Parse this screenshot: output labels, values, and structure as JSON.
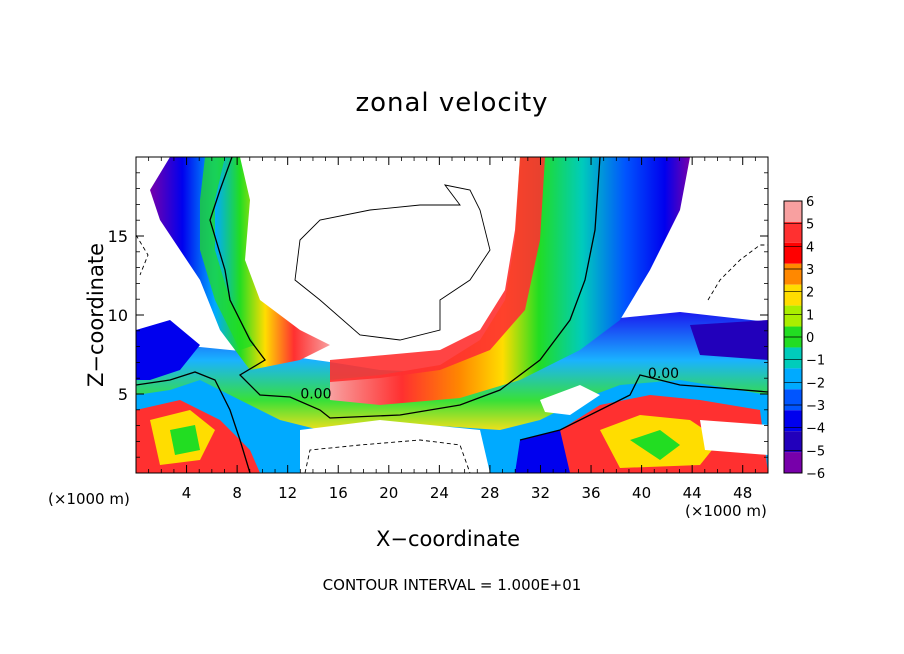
{
  "chart_data": {
    "type": "heatmap",
    "title": "zonal velocity",
    "xlabel": "X−coordinate",
    "ylabel": "Z−coordinate",
    "x_unit_note": "(×1000 m)",
    "x_unit_note_right": "(×1000 m)",
    "xlim": [
      0,
      50
    ],
    "ylim": [
      0,
      20
    ],
    "x_ticks": [
      4,
      8,
      12,
      16,
      20,
      24,
      28,
      32,
      36,
      40,
      44,
      48
    ],
    "y_ticks": [
      5,
      10,
      15
    ],
    "colorbar": {
      "levels": [
        6,
        5,
        4,
        3,
        2,
        1,
        0,
        -1,
        -2,
        -3,
        -4,
        -5,
        -6
      ],
      "labels": [
        "6",
        "5",
        "4",
        "3",
        "2",
        "1",
        "0",
        "−1",
        "−2",
        "−3",
        "−4",
        "−5",
        "−6"
      ],
      "colors": [
        "#f8a0a0",
        "#ff3030",
        "#ff0000",
        "#ff8800",
        "#ffdd00",
        "#aaee00",
        "#22dd22",
        "#00ccbb",
        "#00aaff",
        "#0055ff",
        "#0000ee",
        "#2200bb",
        "#7700aa"
      ],
      "above_max_color": "#ffffff",
      "below_min_color": "#ffffff"
    },
    "contour_labels": [
      {
        "text": "0.00",
        "x": 13,
        "z": 4.7
      },
      {
        "text": "0.00",
        "x": 40.5,
        "z": 6.0
      }
    ],
    "contour_interval_note": "CONTOUR INTERVAL = 1.000E+01",
    "grid": false,
    "legend": "colorbar-right"
  }
}
